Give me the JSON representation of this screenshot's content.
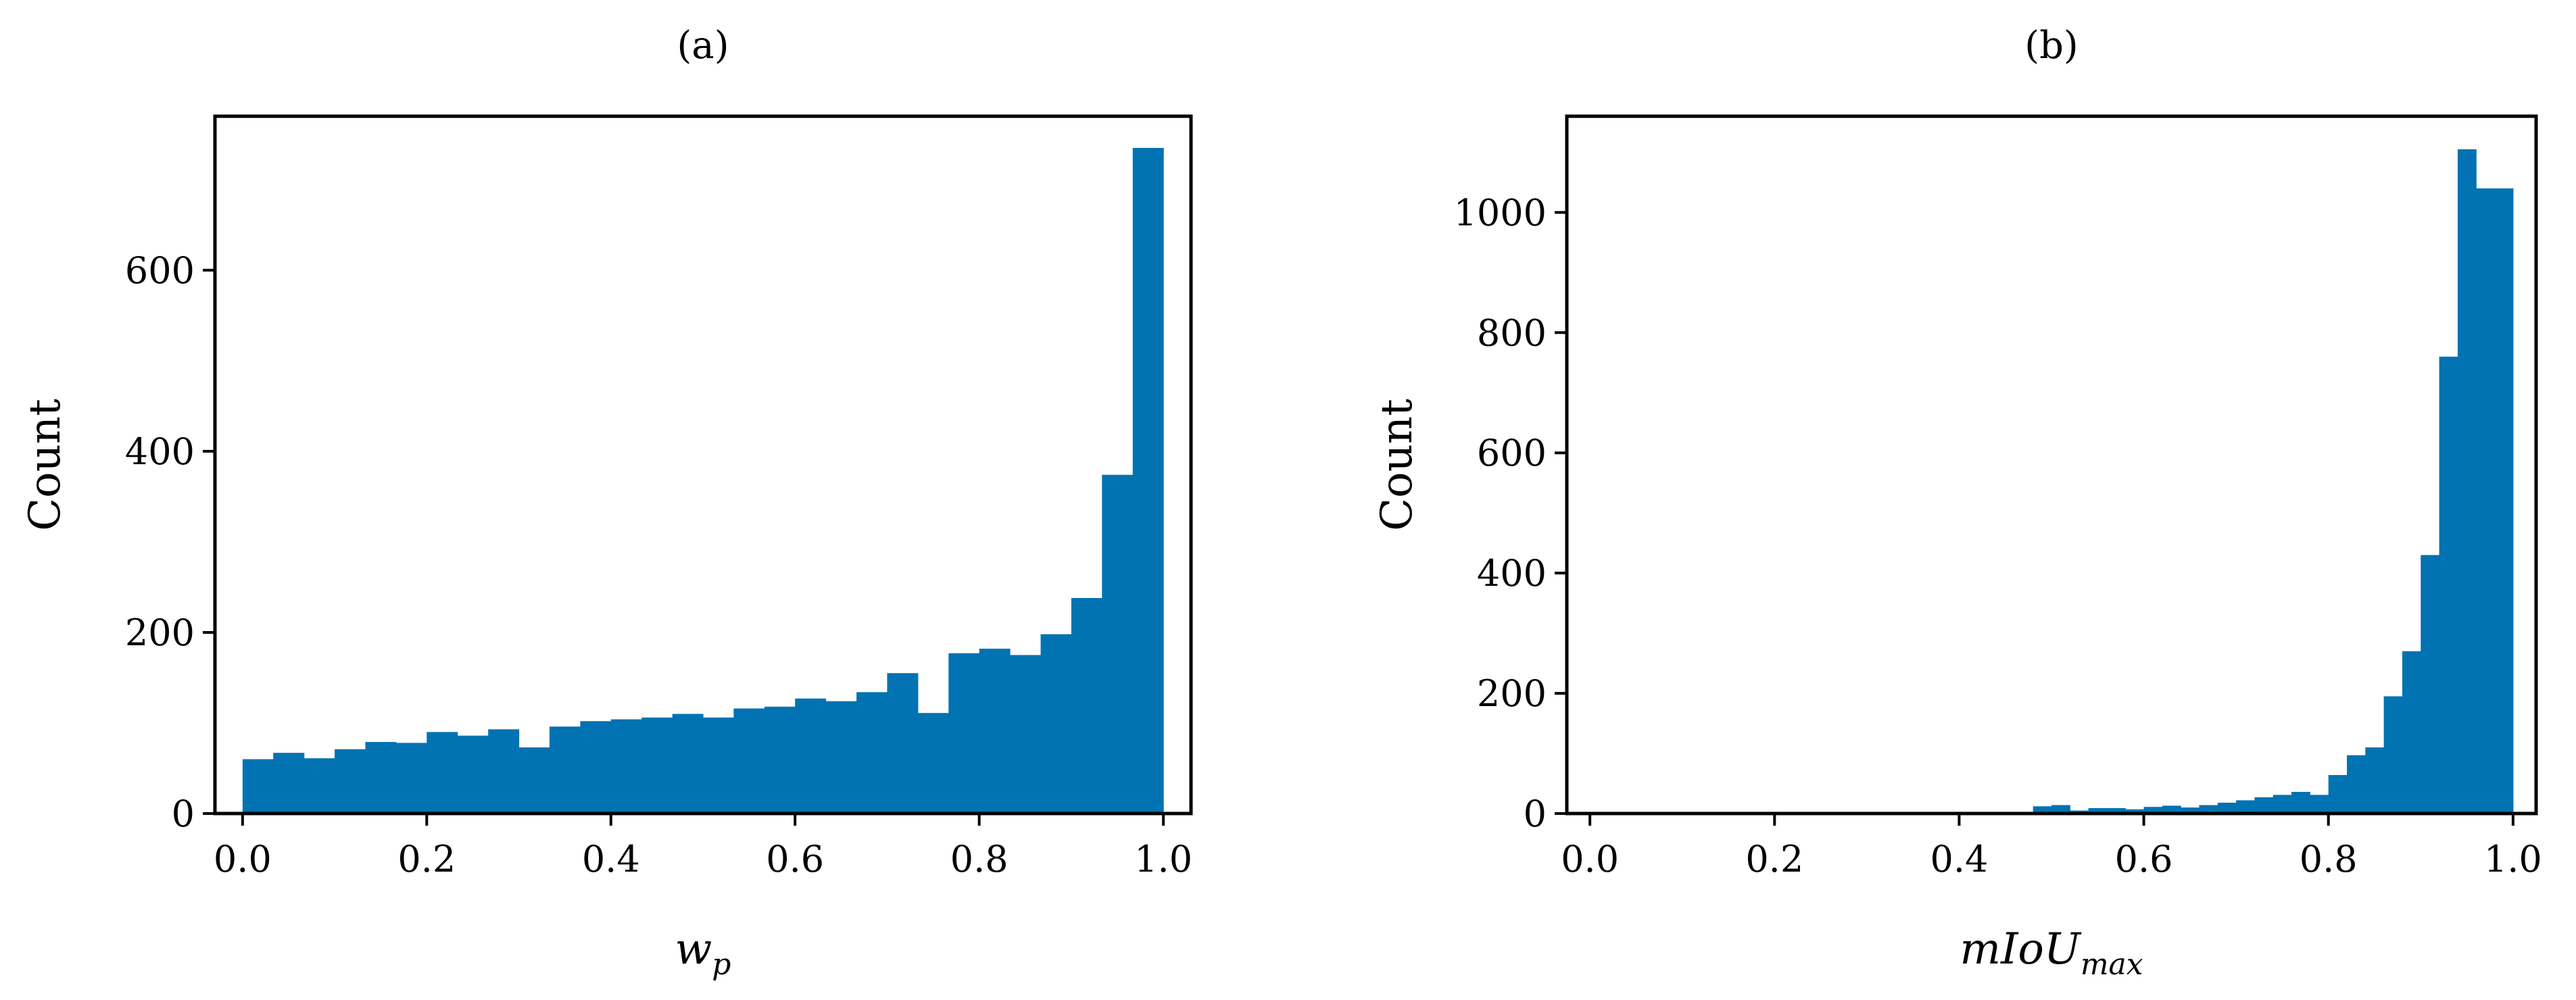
{
  "chart_data": [
    {
      "type": "bar",
      "title": "(a)",
      "xlabel": "w",
      "xlabel_sub": "p",
      "ylabel": "Count",
      "xlim": [
        -0.03,
        1.03
      ],
      "ylim": [
        0,
        770
      ],
      "xticks": [
        0.0,
        0.2,
        0.4,
        0.6,
        0.8,
        1.0
      ],
      "xtick_labels": [
        "0.0",
        "0.2",
        "0.4",
        "0.6",
        "0.8",
        "1.0"
      ],
      "yticks": [
        0,
        200,
        400,
        600
      ],
      "ytick_labels": [
        "0",
        "200",
        "400",
        "600"
      ],
      "grid": false,
      "color": "#0173b2",
      "bin_edges": [
        0.0,
        0.0333,
        0.0667,
        0.1,
        0.1333,
        0.1667,
        0.2,
        0.2333,
        0.2667,
        0.3,
        0.3333,
        0.3667,
        0.4,
        0.4333,
        0.4667,
        0.5,
        0.5333,
        0.5667,
        0.6,
        0.6333,
        0.6667,
        0.7,
        0.7333,
        0.7667,
        0.8,
        0.8333,
        0.8667,
        0.9,
        0.9333,
        0.9667,
        1.0
      ],
      "values": [
        60,
        67,
        61,
        71,
        79,
        78,
        90,
        86,
        93,
        73,
        96,
        102,
        104,
        106,
        110,
        106,
        116,
        118,
        127,
        124,
        134,
        155,
        111,
        177,
        182,
        175,
        198,
        238,
        374,
        735
      ]
    },
    {
      "type": "bar",
      "title": "(b)",
      "xlabel": "mIoU",
      "xlabel_sub": "max",
      "ylabel": "Count",
      "xlim": [
        -0.025,
        1.025
      ],
      "ylim": [
        0,
        1160
      ],
      "xticks": [
        0.0,
        0.2,
        0.4,
        0.6,
        0.8,
        1.0
      ],
      "xtick_labels": [
        "0.0",
        "0.2",
        "0.4",
        "0.6",
        "0.8",
        "1.0"
      ],
      "yticks": [
        0,
        200,
        400,
        600,
        800,
        1000
      ],
      "ytick_labels": [
        "0",
        "200",
        "400",
        "600",
        "800",
        "1000"
      ],
      "grid": false,
      "color": "#0173b2",
      "bin_edges": [
        0.48,
        0.5,
        0.52,
        0.54,
        0.56,
        0.58,
        0.6,
        0.62,
        0.64,
        0.66,
        0.68,
        0.7,
        0.72,
        0.74,
        0.76,
        0.78,
        0.8,
        0.82,
        0.84,
        0.86,
        0.88,
        0.9,
        0.92,
        0.94,
        0.96,
        0.98,
        1.0
      ],
      "values": [
        12,
        14,
        5,
        9,
        9,
        7,
        11,
        13,
        10,
        14,
        18,
        22,
        27,
        31,
        36,
        31,
        64,
        97,
        110,
        195,
        270,
        430,
        760,
        1105,
        1040,
        1040
      ]
    }
  ]
}
